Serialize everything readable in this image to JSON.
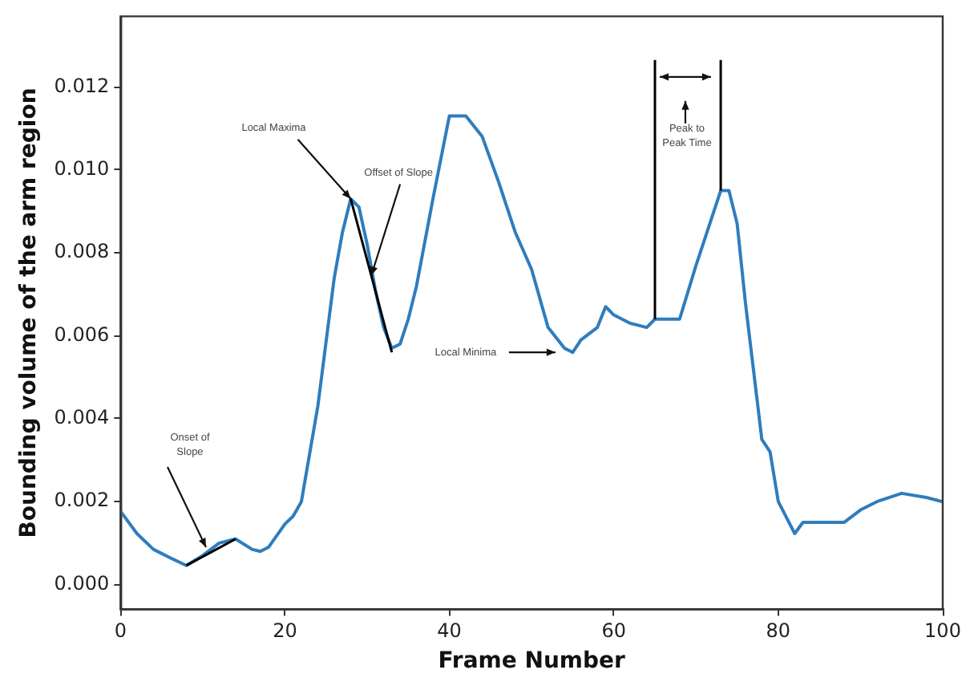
{
  "chart_data": {
    "type": "line",
    "xlabel": "Frame Number",
    "ylabel": "Bounding volume of the arm region",
    "xlim": [
      0,
      100
    ],
    "xticks": [
      0,
      20,
      40,
      60,
      80,
      100
    ],
    "ylim": [
      -0.0006,
      0.0137
    ],
    "yticks": [
      {
        "value": 0,
        "label": "0.000"
      },
      {
        "value": 0.002,
        "label": "0.002"
      },
      {
        "value": 0.004,
        "label": "0.004"
      },
      {
        "value": 0.006,
        "label": "0.006"
      },
      {
        "value": 0.008,
        "label": "0.008"
      },
      {
        "value": 0.01,
        "label": "0.010"
      },
      {
        "value": 0.012,
        "label": "0.012"
      }
    ],
    "grid": false,
    "legend": false,
    "marker": "none",
    "line_style": "solid",
    "series": [
      {
        "color": "#2f7dbd",
        "x": [
          0,
          2,
          4,
          6,
          8,
          10,
          12,
          14,
          16,
          17,
          18,
          20,
          21,
          22,
          24,
          26,
          27,
          28,
          29,
          30,
          31,
          32,
          33,
          34,
          35,
          36,
          38,
          40,
          42,
          44,
          46,
          48,
          50,
          52,
          54,
          55,
          56,
          58,
          59,
          60,
          62,
          64,
          65,
          66,
          68,
          70,
          72,
          73,
          74,
          75,
          76,
          78,
          79,
          80,
          82,
          83,
          85,
          88,
          90,
          92,
          95,
          98,
          100
        ],
        "values": [
          0.00177,
          0.00123,
          0.00085,
          0.00065,
          0.00046,
          0.0007,
          0.001,
          0.0011,
          0.00085,
          0.0008,
          0.0009,
          0.00146,
          0.00165,
          0.002,
          0.0043,
          0.0074,
          0.0085,
          0.0093,
          0.0091,
          0.0082,
          0.0071,
          0.0062,
          0.0057,
          0.0058,
          0.0064,
          0.0072,
          0.0093,
          0.0113,
          0.0113,
          0.0108,
          0.0097,
          0.0085,
          0.0076,
          0.0062,
          0.0057,
          0.0056,
          0.0059,
          0.0062,
          0.0067,
          0.0065,
          0.0063,
          0.0062,
          0.0064,
          0.0064,
          0.0064,
          0.0077,
          0.0089,
          0.0095,
          0.0095,
          0.0087,
          0.0068,
          0.0035,
          0.0032,
          0.002,
          0.00123,
          0.0015,
          0.0015,
          0.0015,
          0.0018,
          0.002,
          0.0022,
          0.0021,
          0.002
        ]
      },
      {
        "color": "#000000",
        "x": [
          8,
          14
        ],
        "values": [
          0.00046,
          0.0011
        ]
      },
      {
        "color": "#000000",
        "x": [
          28,
          33
        ],
        "values": [
          0.0093,
          0.0056
        ]
      },
      {
        "color": "#000000",
        "x": [
          65,
          65
        ],
        "values": [
          0.0064,
          0.01265
        ]
      },
      {
        "color": "#000000",
        "x": [
          73,
          73
        ],
        "values": [
          0.0095,
          0.01265
        ]
      }
    ],
    "annotations": [
      {
        "text": "Local Maxima",
        "x": 28,
        "y": 0.0093
      },
      {
        "text": "Offset of Slope",
        "x": 30.5,
        "y": 0.00745
      },
      {
        "text": "Local Minima",
        "x": 52.9,
        "y": 0.0056
      },
      {
        "text": "Onset of Slope",
        "x": 10.4,
        "y": 0.0009
      },
      "Peak to Peak Time"
    ]
  }
}
